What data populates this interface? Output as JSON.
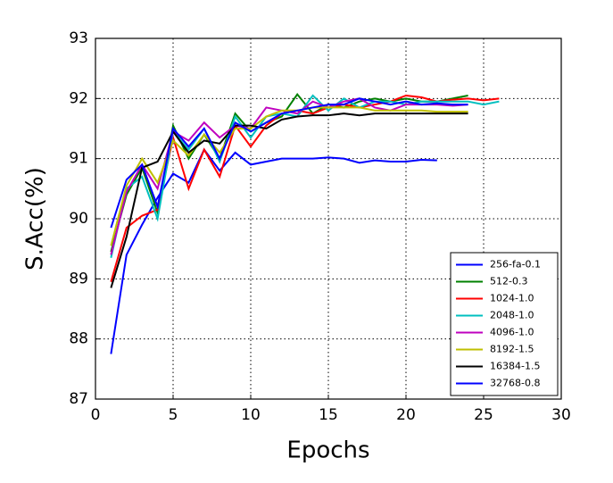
{
  "chart_data": {
    "type": "line",
    "x_label": "Epochs",
    "y_label": "S.Acc(%)",
    "xlim": [
      0,
      30
    ],
    "xticks": [
      0,
      5,
      10,
      15,
      20,
      25,
      30
    ],
    "ylim": [
      87,
      93
    ],
    "yticks": [
      87,
      88,
      89,
      90,
      91,
      92,
      93
    ],
    "grid": true,
    "legend": "lower right",
    "series": [
      {
        "name": "256-fa-0.1",
        "color": "#0000ff",
        "x": [
          1,
          2,
          3,
          4,
          5,
          6,
          7,
          8,
          9,
          10,
          11,
          12,
          13,
          14,
          15,
          16,
          17,
          18,
          19,
          20,
          21,
          22
        ],
        "values": [
          87.75,
          89.4,
          89.9,
          90.35,
          90.75,
          90.6,
          91.15,
          90.8,
          91.1,
          90.9,
          90.95,
          91.0,
          91.0,
          91.0,
          91.02,
          91.0,
          90.93,
          90.97,
          90.95,
          90.95,
          90.98,
          90.97
        ]
      },
      {
        "name": "512-0.3",
        "color": "#008000",
        "x": [
          1,
          2,
          3,
          4,
          5,
          6,
          7,
          8,
          9,
          10,
          11,
          12,
          13,
          14,
          15,
          16,
          17,
          18,
          19,
          20,
          21,
          22,
          23,
          24
        ],
        "values": [
          89.45,
          90.4,
          90.85,
          90.1,
          91.55,
          91.0,
          91.4,
          91.0,
          91.75,
          91.45,
          91.6,
          91.7,
          92.07,
          91.75,
          91.9,
          91.85,
          91.95,
          92.0,
          91.95,
          92.0,
          91.95,
          91.95,
          92.0,
          92.05
        ]
      },
      {
        "name": "1024-1.0",
        "color": "#ff0000",
        "x": [
          1,
          2,
          3,
          4,
          5,
          6,
          7,
          8,
          9,
          10,
          11,
          12,
          13,
          14,
          15,
          16,
          17,
          18,
          19,
          20,
          21,
          22,
          23,
          24,
          25,
          26
        ],
        "values": [
          88.95,
          89.85,
          90.05,
          90.15,
          91.35,
          90.5,
          91.15,
          90.7,
          91.55,
          91.2,
          91.55,
          91.75,
          91.8,
          91.75,
          91.85,
          91.9,
          91.85,
          91.9,
          91.95,
          92.05,
          92.02,
          91.95,
          91.98,
          92.0,
          91.97,
          92.0
        ]
      },
      {
        "name": "2048-1.0",
        "color": "#00bfbf",
        "x": [
          1,
          2,
          3,
          4,
          5,
          6,
          7,
          8,
          9,
          10,
          11,
          12,
          13,
          14,
          15,
          16,
          17,
          18,
          19,
          20,
          21,
          22,
          23,
          24,
          25,
          26
        ],
        "values": [
          89.35,
          90.5,
          90.7,
          90.0,
          91.45,
          91.15,
          91.5,
          90.95,
          91.7,
          91.35,
          91.7,
          91.75,
          91.7,
          92.05,
          91.8,
          92.0,
          91.85,
          91.95,
          91.95,
          91.9,
          91.95,
          91.95,
          91.95,
          91.95,
          91.9,
          91.95
        ]
      },
      {
        "name": "4096-1.0",
        "color": "#bf00bf",
        "x": [
          1,
          2,
          3,
          4,
          5,
          6,
          7,
          8,
          9,
          10,
          11,
          12,
          13,
          14,
          15,
          16,
          17,
          18,
          19,
          20,
          21,
          22,
          23,
          24
        ],
        "values": [
          89.4,
          90.45,
          90.9,
          90.5,
          91.45,
          91.3,
          91.6,
          91.35,
          91.55,
          91.5,
          91.85,
          91.8,
          91.75,
          91.95,
          91.85,
          91.95,
          92.0,
          91.85,
          91.8,
          91.9,
          91.9,
          91.9,
          91.88,
          91.9
        ]
      },
      {
        "name": "8192-1.5",
        "color": "#bfbf00",
        "x": [
          1,
          2,
          3,
          4,
          5,
          6,
          7,
          8,
          9,
          10,
          11,
          12,
          13,
          14,
          15,
          16,
          17,
          18,
          19,
          20,
          21,
          22,
          23,
          24
        ],
        "values": [
          89.55,
          90.55,
          91.0,
          90.6,
          91.3,
          91.05,
          91.4,
          91.1,
          91.5,
          91.5,
          91.7,
          91.8,
          91.8,
          91.85,
          91.85,
          91.85,
          91.85,
          91.8,
          91.8,
          91.8,
          91.8,
          91.78,
          91.78,
          91.78
        ]
      },
      {
        "name": "16384-1.5",
        "color": "#000000",
        "x": [
          1,
          2,
          3,
          4,
          5,
          6,
          7,
          8,
          9,
          10,
          11,
          12,
          13,
          14,
          15,
          16,
          17,
          18,
          19,
          20,
          21,
          22,
          23,
          24
        ],
        "values": [
          88.85,
          89.7,
          90.85,
          90.95,
          91.45,
          91.1,
          91.3,
          91.25,
          91.55,
          91.55,
          91.5,
          91.65,
          91.7,
          91.72,
          91.72,
          91.75,
          91.72,
          91.75,
          91.75,
          91.75,
          91.75,
          91.75,
          91.75,
          91.75
        ]
      },
      {
        "name": "32768-0.8",
        "color": "#0000ff",
        "x": [
          1,
          2,
          3,
          4,
          5,
          6,
          7,
          8,
          9,
          10,
          11,
          12,
          13,
          14,
          15,
          16,
          17,
          18,
          19,
          20,
          21,
          22,
          23,
          24
        ],
        "values": [
          89.85,
          90.65,
          90.9,
          90.2,
          91.5,
          91.2,
          91.5,
          91.0,
          91.6,
          91.45,
          91.6,
          91.75,
          91.8,
          91.85,
          91.9,
          91.9,
          92.0,
          91.95,
          91.9,
          91.95,
          91.9,
          91.92,
          91.9,
          91.9
        ]
      }
    ]
  }
}
